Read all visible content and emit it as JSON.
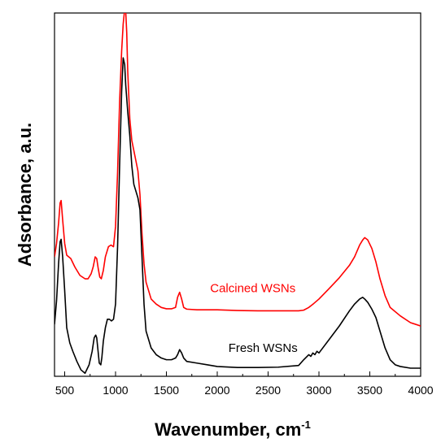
{
  "chart_data": {
    "type": "line",
    "xlabel": "Wavenumber, cm",
    "xlabel_superscript": "-1",
    "ylabel": "Adsorbance, a.u.",
    "xlim": [
      400,
      4000
    ],
    "ylim": [
      0,
      1
    ],
    "x_ticks": [
      500,
      1000,
      1500,
      2000,
      2500,
      3000,
      3500,
      4000
    ],
    "y_ticks_shown": false,
    "grid": false,
    "legend": "none",
    "series": [
      {
        "name": "Calcined WSNs",
        "color": "#ff0000",
        "x": [
          400,
          420,
          440,
          455,
          465,
          480,
          500,
          520,
          560,
          600,
          650,
          700,
          730,
          760,
          780,
          800,
          815,
          830,
          845,
          860,
          880,
          900,
          930,
          955,
          980,
          1000,
          1020,
          1040,
          1060,
          1075,
          1090,
          1100,
          1110,
          1120,
          1140,
          1160,
          1180,
          1200,
          1220,
          1240,
          1260,
          1280,
          1300,
          1350,
          1400,
          1450,
          1500,
          1550,
          1590,
          1610,
          1630,
          1650,
          1670,
          1700,
          1800,
          1900,
          2000,
          2200,
          2400,
          2600,
          2800,
          2850,
          2900,
          2950,
          3000,
          3100,
          3200,
          3300,
          3350,
          3400,
          3430,
          3450,
          3480,
          3520,
          3560,
          3600,
          3650,
          3700,
          3800,
          3900,
          4000
        ],
        "y": [
          0.33,
          0.37,
          0.43,
          0.49,
          0.497,
          0.44,
          0.37,
          0.335,
          0.325,
          0.3,
          0.275,
          0.265,
          0.265,
          0.28,
          0.3,
          0.33,
          0.325,
          0.295,
          0.27,
          0.265,
          0.29,
          0.33,
          0.36,
          0.365,
          0.36,
          0.42,
          0.58,
          0.79,
          0.94,
          1.02,
          1.065,
          1.058,
          0.995,
          0.88,
          0.74,
          0.675,
          0.645,
          0.615,
          0.585,
          0.515,
          0.4,
          0.31,
          0.255,
          0.205,
          0.19,
          0.18,
          0.176,
          0.176,
          0.18,
          0.21,
          0.225,
          0.205,
          0.18,
          0.175,
          0.173,
          0.173,
          0.173,
          0.171,
          0.17,
          0.17,
          0.17,
          0.172,
          0.18,
          0.192,
          0.205,
          0.236,
          0.268,
          0.305,
          0.33,
          0.365,
          0.38,
          0.387,
          0.38,
          0.355,
          0.315,
          0.265,
          0.215,
          0.18,
          0.155,
          0.135,
          0.125
        ]
      },
      {
        "name": "Fresh WSNs",
        "color": "#000000",
        "x": [
          400,
          420,
          440,
          455,
          465,
          480,
          500,
          520,
          550,
          580,
          620,
          660,
          700,
          740,
          770,
          790,
          805,
          815,
          825,
          840,
          855,
          865,
          880,
          900,
          920,
          940,
          960,
          980,
          1000,
          1020,
          1040,
          1060,
          1075,
          1090,
          1100,
          1110,
          1120,
          1140,
          1160,
          1180,
          1200,
          1220,
          1240,
          1260,
          1280,
          1300,
          1350,
          1400,
          1450,
          1500,
          1550,
          1590,
          1610,
          1630,
          1650,
          1670,
          1700,
          1800,
          1900,
          2000,
          2200,
          2400,
          2600,
          2800,
          2850,
          2900,
          2920,
          2940,
          2960,
          2980,
          3000,
          3100,
          3200,
          3300,
          3350,
          3400,
          3430,
          3450,
          3480,
          3520,
          3560,
          3600,
          3650,
          3700,
          3750,
          3800,
          3900,
          4000
        ],
        "y": [
          0.13,
          0.2,
          0.31,
          0.375,
          0.382,
          0.33,
          0.23,
          0.12,
          0.075,
          0.05,
          0.02,
          -0.005,
          -0.015,
          0.01,
          0.05,
          0.09,
          0.098,
          0.09,
          0.06,
          0.015,
          0.01,
          0.03,
          0.08,
          0.12,
          0.145,
          0.145,
          0.14,
          0.145,
          0.19,
          0.36,
          0.6,
          0.82,
          0.92,
          0.9,
          0.84,
          0.8,
          0.76,
          0.69,
          0.6,
          0.545,
          0.525,
          0.505,
          0.47,
          0.33,
          0.19,
          0.11,
          0.06,
          0.04,
          0.03,
          0.025,
          0.025,
          0.03,
          0.04,
          0.055,
          0.045,
          0.03,
          0.02,
          0.015,
          0.01,
          0.005,
          0.002,
          0.002,
          0.003,
          0.008,
          0.025,
          0.04,
          0.035,
          0.045,
          0.04,
          0.05,
          0.045,
          0.085,
          0.125,
          0.17,
          0.19,
          0.205,
          0.21,
          0.205,
          0.195,
          0.175,
          0.15,
          0.11,
          0.06,
          0.025,
          0.01,
          0.005,
          0.0,
          0.0
        ]
      }
    ],
    "annotations": [
      {
        "text": "Calcined WSNs",
        "color": "#ff0000",
        "x": 2350,
        "y": 0.225
      },
      {
        "text": "Fresh WSNs",
        "color": "#000000",
        "x": 2450,
        "y": 0.048
      }
    ]
  }
}
